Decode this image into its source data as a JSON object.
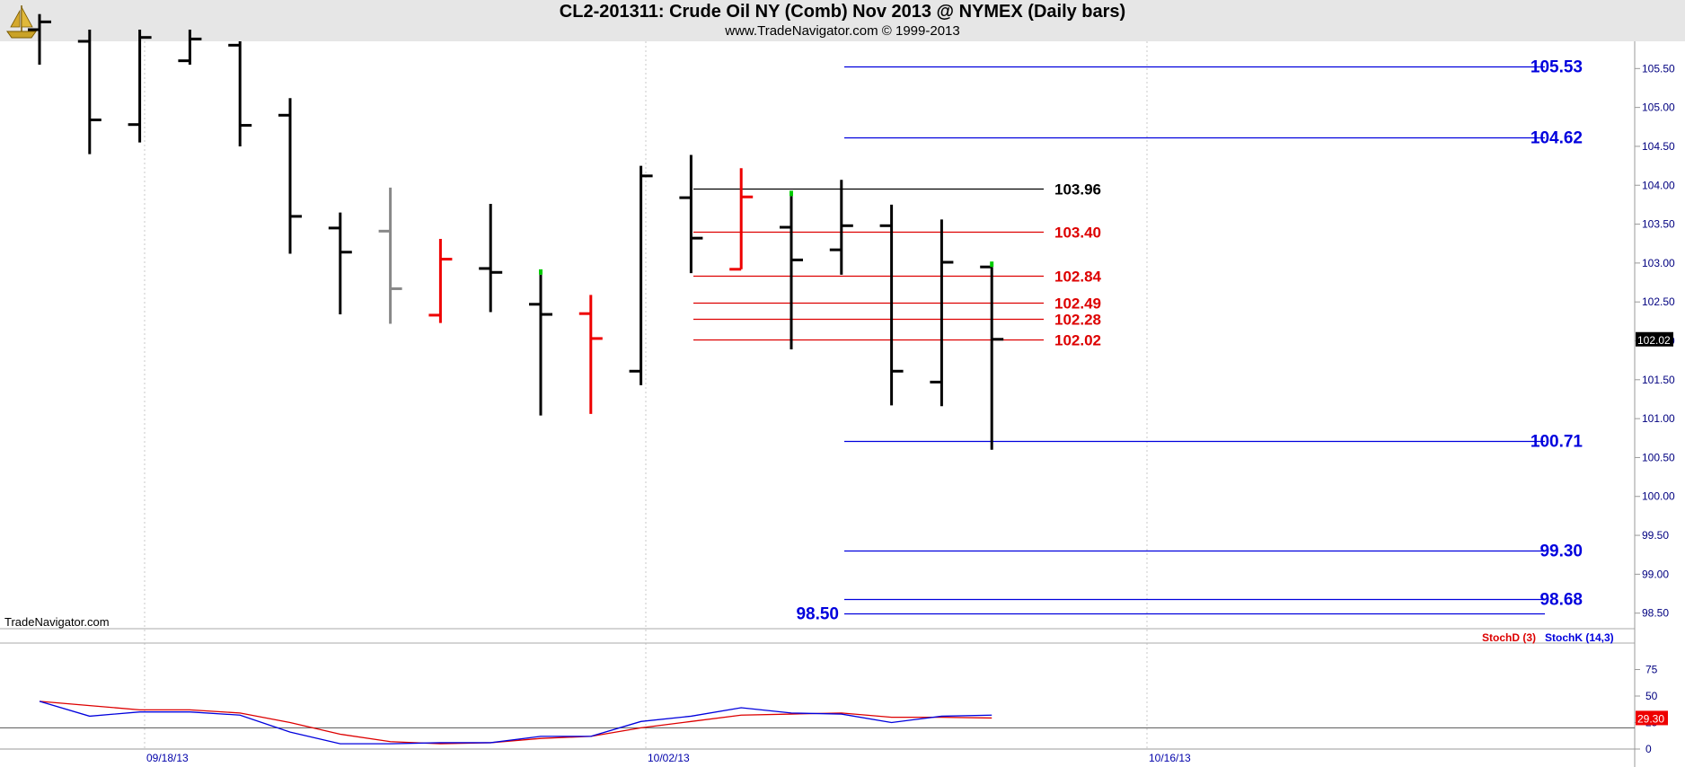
{
  "header": {
    "title": "CL2-201311:  Crude Oil NY (Comb) Nov 2013 @ NYMEX  (Daily bars)",
    "subtitle": "www.TradeNavigator.com © 1999-2013",
    "logo_icon": "gold-sailing-ship-icon"
  },
  "watermark": "TradeNavigator.com",
  "colors": {
    "bar_black": "#000000",
    "bar_red": "#ee0000",
    "bar_gray": "#888888",
    "blue": "#0000dd",
    "red": "#dd0000",
    "green": "#00cc00"
  },
  "chart_data": [
    {
      "type": "ohlc",
      "x_labels": [
        {
          "index": 2,
          "label": "09/18/13"
        },
        {
          "index": 12,
          "label": "10/02/13"
        },
        {
          "index": 22,
          "label": "10/16/13"
        }
      ],
      "ylim": [
        98.3,
        105.85
      ],
      "y_ticks": [
        "105.50",
        "105.00",
        "104.50",
        "104.00",
        "103.50",
        "103.00",
        "102.50",
        "102.00",
        "101.50",
        "101.00",
        "100.50",
        "100.00",
        "99.50",
        "99.00",
        "98.50"
      ],
      "last_price": "102.02",
      "bars": [
        {
          "i": 0,
          "open": 106.0,
          "high": 106.2,
          "low": 105.55,
          "close": 106.1,
          "color": "black"
        },
        {
          "i": 1,
          "open": 105.85,
          "high": 106.0,
          "low": 104.4,
          "close": 104.84,
          "color": "black"
        },
        {
          "i": 2,
          "open": 104.78,
          "high": 106.0,
          "low": 104.55,
          "close": 105.9,
          "color": "black"
        },
        {
          "i": 3,
          "open": 105.6,
          "high": 106.0,
          "low": 105.55,
          "close": 105.88,
          "color": "black"
        },
        {
          "i": 4,
          "open": 105.8,
          "high": 105.85,
          "low": 104.5,
          "close": 104.77,
          "color": "black"
        },
        {
          "i": 5,
          "open": 104.9,
          "high": 105.12,
          "low": 103.12,
          "close": 103.6,
          "color": "black"
        },
        {
          "i": 6,
          "open": 103.45,
          "high": 103.65,
          "low": 102.34,
          "close": 103.14,
          "color": "black"
        },
        {
          "i": 7,
          "open": 103.41,
          "high": 103.97,
          "low": 102.22,
          "close": 102.67,
          "color": "gray"
        },
        {
          "i": 8,
          "open": 102.33,
          "high": 103.31,
          "low": 102.23,
          "close": 103.05,
          "color": "red"
        },
        {
          "i": 9,
          "open": 102.93,
          "high": 103.76,
          "low": 102.37,
          "close": 102.88,
          "color": "black"
        },
        {
          "i": 10,
          "open": 102.47,
          "high": 102.85,
          "low": 101.04,
          "close": 102.34,
          "color": "black",
          "marker": "green"
        },
        {
          "i": 11,
          "open": 102.35,
          "high": 102.59,
          "low": 101.06,
          "close": 102.03,
          "color": "red"
        },
        {
          "i": 12,
          "open": 101.61,
          "high": 104.25,
          "low": 101.43,
          "close": 104.12,
          "color": "black"
        },
        {
          "i": 13,
          "open": 103.84,
          "high": 104.39,
          "low": 102.87,
          "close": 103.32,
          "color": "black"
        },
        {
          "i": 14,
          "open": 102.92,
          "high": 104.22,
          "low": 102.92,
          "close": 103.85,
          "color": "red"
        },
        {
          "i": 15,
          "open": 103.46,
          "high": 103.86,
          "low": 101.89,
          "close": 103.04,
          "color": "black",
          "marker": "green"
        },
        {
          "i": 16,
          "open": 103.17,
          "high": 104.07,
          "low": 102.85,
          "close": 103.48,
          "color": "black"
        },
        {
          "i": 17,
          "open": 103.48,
          "high": 103.75,
          "low": 101.17,
          "close": 101.61,
          "color": "black"
        },
        {
          "i": 18,
          "open": 101.47,
          "high": 103.56,
          "low": 101.16,
          "close": 103.01,
          "color": "black"
        },
        {
          "i": 19,
          "open": 102.95,
          "high": 102.95,
          "low": 100.6,
          "close": 102.02,
          "color": "black",
          "marker": "green"
        }
      ],
      "levels": [
        {
          "value": 105.53,
          "label": "105.53",
          "color": "blue"
        },
        {
          "value": 104.62,
          "label": "104.62",
          "color": "blue"
        },
        {
          "value": 103.96,
          "label": "103.96",
          "color": "black"
        },
        {
          "value": 103.4,
          "label": "103.40",
          "color": "red"
        },
        {
          "value": 102.84,
          "label": "102.84",
          "color": "red"
        },
        {
          "value": 102.49,
          "label": "102.49",
          "color": "red"
        },
        {
          "value": 102.28,
          "label": "102.28",
          "color": "red"
        },
        {
          "value": 102.02,
          "label": "102.02",
          "color": "red"
        },
        {
          "value": 100.71,
          "label": "100.71",
          "color": "blue"
        },
        {
          "value": 99.3,
          "label": "99.30",
          "color": "blue"
        },
        {
          "value": 98.68,
          "label": "98.68",
          "color": "blue"
        },
        {
          "value": 98.5,
          "label": "98.50",
          "color": "blue"
        }
      ]
    },
    {
      "type": "line",
      "ylim": [
        0,
        100
      ],
      "y_ticks": [
        "75",
        "50",
        "25",
        "0"
      ],
      "last_value": "29.30",
      "series": [
        {
          "name": "StochD (3)",
          "color": "red",
          "x": [
            0,
            1,
            2,
            3,
            4,
            5,
            6,
            7,
            8,
            9,
            10,
            11,
            12,
            13,
            14,
            15,
            16,
            17,
            18,
            19
          ],
          "values": [
            45,
            41,
            37,
            37,
            34,
            25,
            14,
            7,
            5,
            6,
            10,
            12,
            20,
            26,
            32,
            33,
            34,
            30,
            30,
            29.3
          ]
        },
        {
          "name": "StochK (14,3)",
          "color": "blue",
          "x": [
            0,
            1,
            2,
            3,
            4,
            5,
            6,
            7,
            8,
            9,
            10,
            11,
            12,
            13,
            14,
            15,
            16,
            17,
            18,
            19
          ],
          "values": [
            45,
            31,
            35,
            35,
            32,
            16,
            5,
            5,
            6,
            6,
            12,
            12,
            26,
            31,
            39,
            34,
            33,
            25,
            31,
            32
          ]
        }
      ]
    }
  ]
}
